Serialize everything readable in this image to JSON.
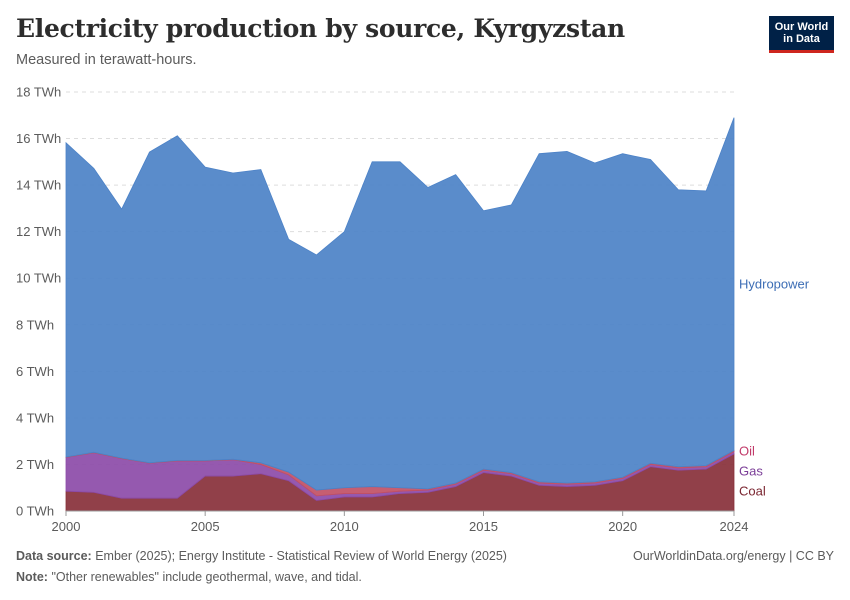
{
  "header": {
    "title": "Electricity production by source, Kyrgyzstan",
    "subtitle": "Measured in terawatt-hours."
  },
  "logo": {
    "line1": "Our World",
    "line2": "in Data"
  },
  "footer": {
    "source_label": "Data source:",
    "source_text": "Ember (2025); Energy Institute - Statistical Review of World Energy (2025)",
    "note_label": "Note:",
    "note_text": "\"Other renewables\" include geothermal, wave, and tidal.",
    "url": "OurWorldinData.org/energy | CC BY"
  },
  "chart_data": {
    "type": "area",
    "stacked": true,
    "title": "Electricity production by source, Kyrgyzstan",
    "subtitle": "Measured in terawatt-hours.",
    "unit": "TWh",
    "x": [
      2000,
      2001,
      2002,
      2003,
      2004,
      2005,
      2006,
      2007,
      2008,
      2009,
      2010,
      2011,
      2012,
      2013,
      2014,
      2015,
      2016,
      2017,
      2018,
      2019,
      2020,
      2021,
      2022,
      2023,
      2024
    ],
    "xlim": [
      2000,
      2024
    ],
    "x_ticks": [
      "2000",
      "2005",
      "2010",
      "2015",
      "2020",
      "2024"
    ],
    "ylim": [
      0,
      18
    ],
    "y_ticks": [
      "0 TWh",
      "2 TWh",
      "4 TWh",
      "6 TWh",
      "8 TWh",
      "10 TWh",
      "12 TWh",
      "14 TWh",
      "16 TWh",
      "18 TWh"
    ],
    "grid": true,
    "series": [
      {
        "name": "Coal",
        "color": "#883039",
        "values": [
          0.85,
          0.8,
          0.55,
          0.55,
          0.55,
          1.5,
          1.5,
          1.6,
          1.3,
          0.45,
          0.6,
          0.6,
          0.75,
          0.8,
          1.05,
          1.65,
          1.5,
          1.1,
          1.05,
          1.1,
          1.3,
          1.9,
          1.75,
          1.8,
          2.45
        ]
      },
      {
        "name": "Gas",
        "color": "#8c4ba8",
        "values": [
          1.45,
          1.7,
          1.7,
          1.5,
          1.6,
          0.65,
          0.7,
          0.4,
          0.25,
          0.2,
          0.15,
          0.15,
          0.1,
          0.1,
          0.1,
          0.1,
          0.1,
          0.1,
          0.1,
          0.1,
          0.1,
          0.1,
          0.1,
          0.1,
          0.1
        ]
      },
      {
        "name": "Oil",
        "color": "#c15065",
        "values": [
          0.02,
          0.02,
          0.02,
          0.02,
          0.02,
          0.02,
          0.02,
          0.07,
          0.12,
          0.25,
          0.25,
          0.3,
          0.15,
          0.05,
          0.05,
          0.05,
          0.05,
          0.05,
          0.05,
          0.05,
          0.05,
          0.05,
          0.05,
          0.05,
          0.05
        ]
      },
      {
        "name": "Hydropower",
        "color": "#4c82c7",
        "values": [
          13.5,
          12.2,
          10.7,
          13.35,
          13.95,
          12.6,
          12.3,
          12.6,
          10.0,
          10.1,
          11.0,
          13.95,
          14.0,
          12.95,
          13.25,
          11.1,
          11.5,
          14.1,
          14.25,
          13.7,
          13.9,
          13.05,
          11.9,
          11.8,
          14.3
        ]
      }
    ],
    "series_labels": [
      "Hydropower",
      "Oil",
      "Gas",
      "Coal"
    ]
  }
}
